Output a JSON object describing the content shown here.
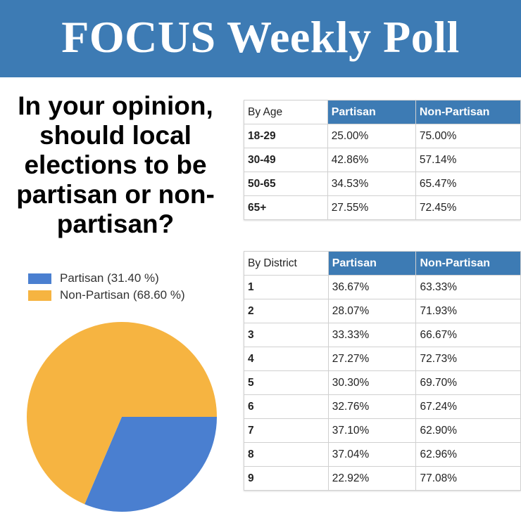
{
  "header": {
    "title": "FOCUS Weekly Poll"
  },
  "question": "In your opinion, should local elections to be partisan or non-partisan?",
  "chart_data": {
    "type": "pie",
    "title": "",
    "series": [
      {
        "name": "Partisan",
        "value": 31.4,
        "label": "Partisan (31.40 %)",
        "color": "#4a7fd0"
      },
      {
        "name": "Non-Partisan",
        "value": 68.6,
        "label": "Non-Partisan (68.60 %)",
        "color": "#f6b441"
      }
    ],
    "legend_position": "top-left"
  },
  "age_table": {
    "header": [
      "By Age",
      "Partisan",
      "Non-Partisan"
    ],
    "rows": [
      [
        "18-29",
        "25.00%",
        "75.00%"
      ],
      [
        "30-49",
        "42.86%",
        "57.14%"
      ],
      [
        "50-65",
        "34.53%",
        "65.47%"
      ],
      [
        "65+",
        "27.55%",
        "72.45%"
      ]
    ]
  },
  "district_table": {
    "header": [
      "By District",
      "Partisan",
      "Non-Partisan"
    ],
    "rows": [
      [
        "1",
        "36.67%",
        "63.33%"
      ],
      [
        "2",
        "28.07%",
        "71.93%"
      ],
      [
        "3",
        "33.33%",
        "66.67%"
      ],
      [
        "4",
        "27.27%",
        "72.73%"
      ],
      [
        "5",
        "30.30%",
        "69.70%"
      ],
      [
        "6",
        "32.76%",
        "67.24%"
      ],
      [
        "7",
        "37.10%",
        "62.90%"
      ],
      [
        "8",
        "37.04%",
        "62.96%"
      ],
      [
        "9",
        "22.92%",
        "77.08%"
      ]
    ]
  },
  "colors": {
    "banner": "#3d7bb4",
    "partisan": "#4a7fd0",
    "non_partisan": "#f6b441"
  }
}
